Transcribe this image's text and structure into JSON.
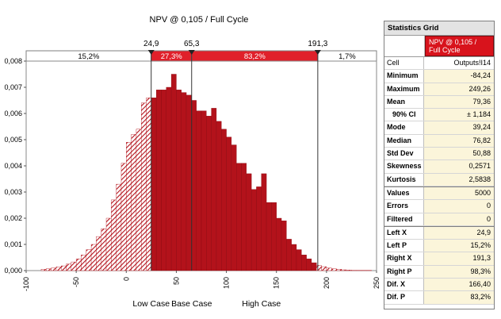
{
  "colors": {
    "accent": "#b3121b",
    "hatch": "#b3121b",
    "band_mid": "#e0202a",
    "marker_line": "#333333"
  },
  "chart_data": {
    "type": "bar",
    "title": "NPV @ 0,105 / Full Cycle",
    "x_ticks": [
      "-100",
      "-50",
      "0",
      "50",
      "100",
      "150",
      "200",
      "250"
    ],
    "y_ticks": [
      "0,000",
      "0,001",
      "0,002",
      "0,003",
      "0,004",
      "0,005",
      "0,006",
      "0,007",
      "0,008"
    ],
    "xlim": [
      -100,
      250
    ],
    "ylim": [
      0,
      0.008
    ],
    "bin_width": 5,
    "bins_start": [
      -85,
      -80,
      -75,
      -70,
      -65,
      -60,
      -55,
      -50,
      -45,
      -40,
      -35,
      -30,
      -25,
      -20,
      -15,
      -10,
      -5,
      0,
      5,
      10,
      15,
      20,
      25,
      30,
      35,
      40,
      45,
      50,
      55,
      60,
      65,
      70,
      75,
      80,
      85,
      90,
      95,
      100,
      105,
      110,
      115,
      120,
      125,
      130,
      135,
      140,
      145,
      150,
      155,
      160,
      165,
      170,
      175,
      180,
      185,
      190,
      195,
      200,
      205,
      210,
      215,
      220,
      225,
      230,
      235,
      240
    ],
    "values": [
      5e-05,
      7e-05,
      0.0001,
      0.00014,
      0.00018,
      0.00025,
      0.00033,
      0.00045,
      0.0006,
      0.0008,
      0.001,
      0.0013,
      0.0016,
      0.002,
      0.0027,
      0.0033,
      0.0041,
      0.0049,
      0.0052,
      0.0054,
      0.0064,
      0.0066,
      0.0066,
      0.0069,
      0.0069,
      0.007,
      0.0075,
      0.0069,
      0.0068,
      0.0067,
      0.0065,
      0.0061,
      0.0061,
      0.0059,
      0.0062,
      0.0057,
      0.0054,
      0.0051,
      0.0048,
      0.0041,
      0.0041,
      0.0037,
      0.0031,
      0.0032,
      0.0037,
      0.0026,
      0.0026,
      0.002,
      0.0019,
      0.0012,
      0.001,
      0.0008,
      0.0006,
      0.00045,
      0.0003,
      0.0002,
      0.00015,
      0.0001,
      7e-05,
      5e-05,
      3e-05,
      2e-05,
      1e-05,
      1e-05,
      1e-05,
      1e-05
    ],
    "markers": [
      {
        "label": "24,9",
        "x": 24.9
      },
      {
        "label": "65,3",
        "x": 65.3
      },
      {
        "label": "191,3",
        "x": 191.3
      }
    ],
    "bands": [
      {
        "label": "15,2%",
        "from": -100,
        "to": 24.9,
        "style": "white"
      },
      {
        "label": "27,3%",
        "from": 24.9,
        "to": 65.3,
        "style": "red"
      },
      {
        "label": "83,2%",
        "from": 65.3,
        "to": 191.3,
        "style": "red"
      },
      {
        "label": "1,7%",
        "from": 191.3,
        "to": 250,
        "style": "white"
      }
    ],
    "case_labels": [
      {
        "label": "Low Case",
        "x": 24.9
      },
      {
        "label": "Base Case",
        "x": 65.3
      },
      {
        "label": "High Case",
        "x": 135
      }
    ]
  },
  "grid": {
    "title": "Statistics Grid",
    "series_name": "NPV @ 0,105 / Full Cycle",
    "cell_label": "Cell",
    "cell_value": "Outputs!I14",
    "rows": [
      {
        "label": "Minimum",
        "value": "-84,24"
      },
      {
        "label": "Maximum",
        "value": "249,26"
      },
      {
        "label": "Mean",
        "value": "79,36"
      },
      {
        "label": "90% CI",
        "value": "± 1,184"
      },
      {
        "label": "Mode",
        "value": "39,24"
      },
      {
        "label": "Median",
        "value": "76,82"
      },
      {
        "label": "Std Dev",
        "value": "50,88"
      },
      {
        "label": "Skewness",
        "value": "0,2571"
      },
      {
        "label": "Kurtosis",
        "value": "2,5838"
      },
      {
        "label": "Values",
        "value": "5000"
      },
      {
        "label": "Errors",
        "value": "0"
      },
      {
        "label": "Filtered",
        "value": "0"
      },
      {
        "label": "Left X",
        "value": "24,9"
      },
      {
        "label": "Left P",
        "value": "15,2%"
      },
      {
        "label": "Right X",
        "value": "191,3"
      },
      {
        "label": "Right P",
        "value": "98,3%"
      },
      {
        "label": "Dif. X",
        "value": "166,40"
      },
      {
        "label": "Dif. P",
        "value": "83,2%"
      }
    ]
  }
}
